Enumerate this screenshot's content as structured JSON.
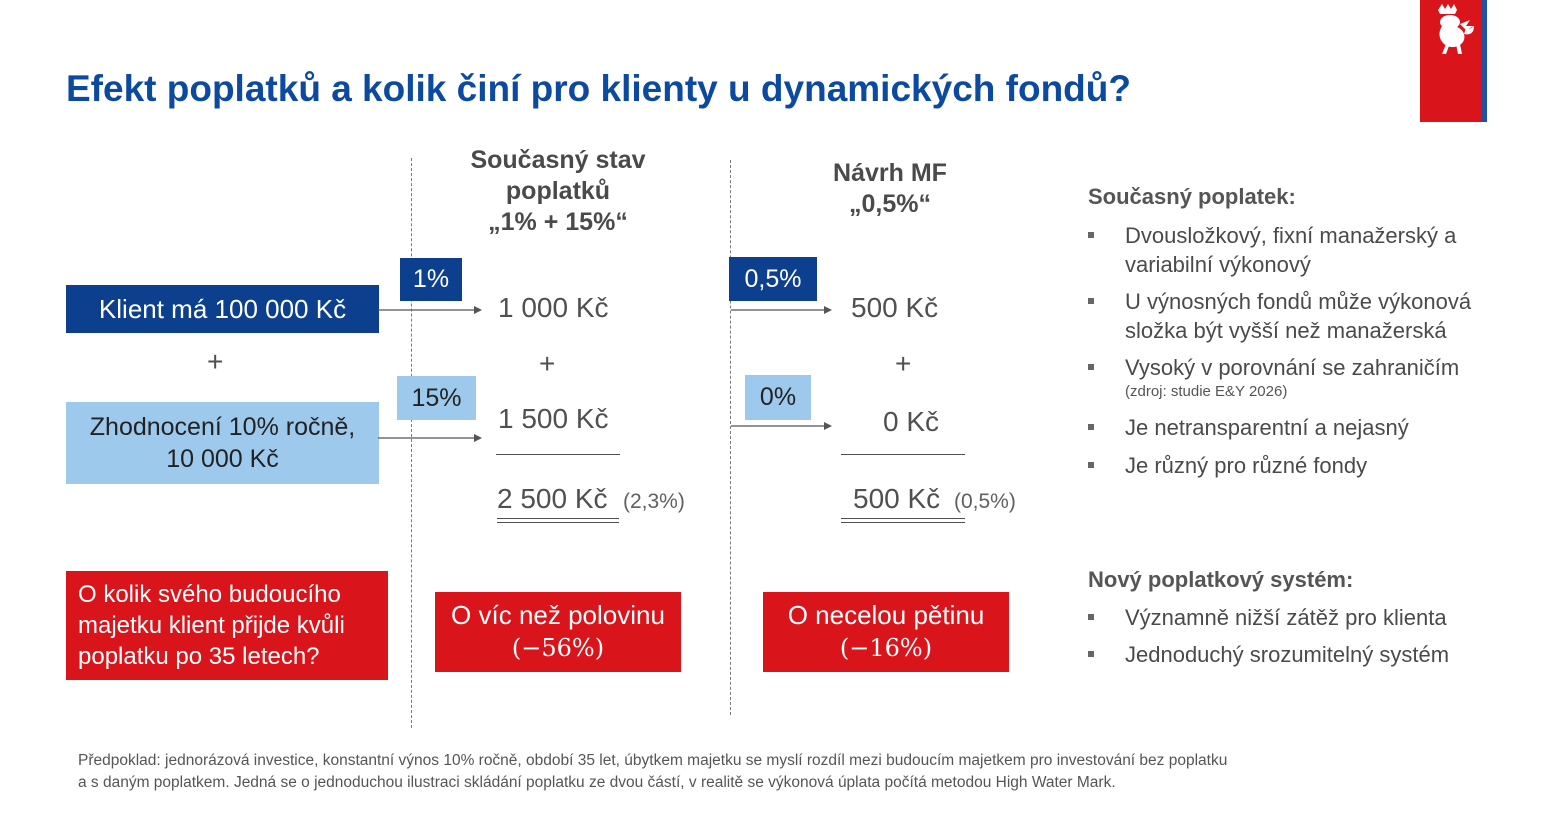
{
  "title": "Efekt poplatků a kolik činí pro klienty u dynamických fondů?",
  "logo_icon": "czech-lion-emblem",
  "left": {
    "client_box": "Klient má 100 000 Kč",
    "plus": "+",
    "growth_box": "Zhodnocení 10% ročně, 10 000 Kč",
    "question_box": "O kolik svého budoucího majetku klient přijde kvůli poplatku po 35 letech?"
  },
  "current": {
    "heading_line1": "Současný stav",
    "heading_line2": "poplatků",
    "heading_line3": "„1% + 15%“",
    "rate1": "1%",
    "amount1": "1 000 Kč",
    "plus": "+",
    "rate2": "15%",
    "amount2": "1 500 Kč",
    "total": "2 500 Kč",
    "total_pct": "(2,3%)",
    "result_line1": "O víc než polovinu",
    "result_line2": "(−56%)"
  },
  "proposal": {
    "heading_line1": "Návrh MF",
    "heading_line2": "„0,5%“",
    "rate1": "0,5%",
    "amount1": "500 Kč",
    "plus": "+",
    "rate2": "0%",
    "amount2": "0 Kč",
    "total": "500 Kč",
    "total_pct": "(0,5%)",
    "result_line1": "O necelou pětinu",
    "result_line2": "(−16%)"
  },
  "right": {
    "current_heading": "Současný poplatek:",
    "current_items": [
      "Dvousložkový, fixní manažerský a variabilní výkonový",
      "U výnosných fondů může výkonová složka být vyšší než manažerská",
      "Vysoký v porovnání se zahraničím",
      "Je netransparentní a nejasný",
      "Je různý pro různé fondy"
    ],
    "source_note": "(zdroj: studie E&Y 2026)",
    "new_heading": "Nový poplatkový systém:",
    "new_items": [
      "Významně nižší zátěž pro klienta",
      "Jednoduchý srozumitelný systém"
    ]
  },
  "footnote_line1": "Předpoklad: jednorázová investice, konstantní výnos 10% ročně, období 35 let, úbytkem majetku se myslí rozdíl mezi budoucím majetkem pro investování bez poplatku",
  "footnote_line2": "a s daným poplatkem. Jedná se o jednoduchou ilustraci skládání poplatku ze dvou částí, v realitě se výkonová úplata počítá metodou High Water Mark."
}
